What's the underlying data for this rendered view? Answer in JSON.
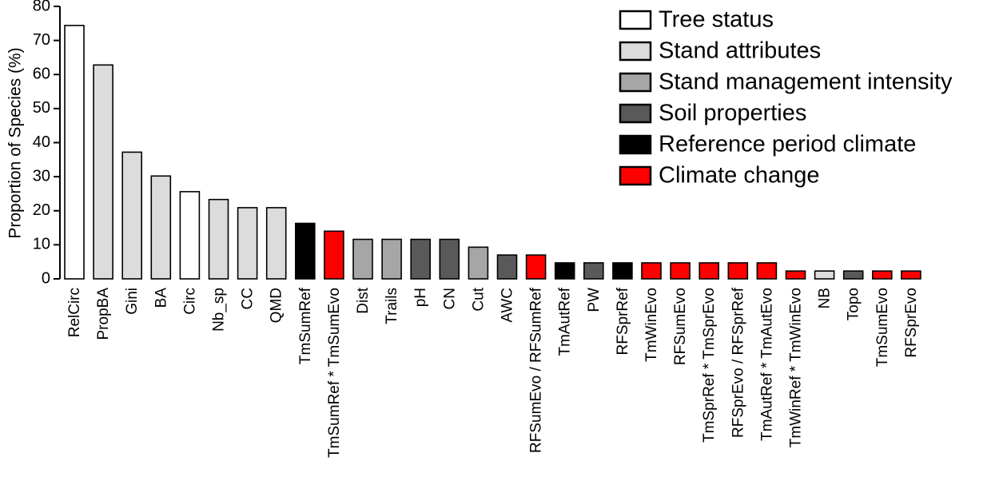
{
  "chart_data": {
    "type": "bar",
    "title": "",
    "xlabel": "",
    "ylabel": "Proportion of Species (%)",
    "ylim": [
      0,
      80
    ],
    "yticks": [
      0,
      10,
      20,
      30,
      40,
      50,
      60,
      70,
      80
    ],
    "grid": false,
    "legend_position": "top-right",
    "legend": [
      {
        "name": "Tree status",
        "color": "#ffffff"
      },
      {
        "name": "Stand attributes",
        "color": "#dcdcdc"
      },
      {
        "name": "Stand management intensity",
        "color": "#a6a6a6"
      },
      {
        "name": "Soil properties",
        "color": "#595959"
      },
      {
        "name": "Reference period climate",
        "color": "#000000"
      },
      {
        "name": "Climate change",
        "color": "#ff0000"
      }
    ],
    "bars": [
      {
        "label": "RelCirc",
        "value": 74.4,
        "group": 0
      },
      {
        "label": "PropBA",
        "value": 62.8,
        "group": 1
      },
      {
        "label": "Gini",
        "value": 37.2,
        "group": 1
      },
      {
        "label": "BA",
        "value": 30.2,
        "group": 1
      },
      {
        "label": "Circ",
        "value": 25.6,
        "group": 0
      },
      {
        "label": "Nb_sp",
        "value": 23.3,
        "group": 1
      },
      {
        "label": "CC",
        "value": 20.9,
        "group": 1
      },
      {
        "label": "QMD",
        "value": 20.9,
        "group": 1
      },
      {
        "label": "TmSumRef",
        "value": 16.3,
        "group": 4
      },
      {
        "label": "TmSumRef * TmSumEvo",
        "value": 14.0,
        "group": 5
      },
      {
        "label": "Dist",
        "value": 11.6,
        "group": 2
      },
      {
        "label": "Trails",
        "value": 11.6,
        "group": 2
      },
      {
        "label": "pH",
        "value": 11.6,
        "group": 3
      },
      {
        "label": "CN",
        "value": 11.6,
        "group": 3
      },
      {
        "label": "Cut",
        "value": 9.3,
        "group": 2
      },
      {
        "label": "AWC",
        "value": 7.0,
        "group": 3
      },
      {
        "label": "RFSumEvo / RFSumRef",
        "value": 7.0,
        "group": 5
      },
      {
        "label": "TmAutRef",
        "value": 4.7,
        "group": 4
      },
      {
        "label": "PW",
        "value": 4.7,
        "group": 3
      },
      {
        "label": "RFSprRef",
        "value": 4.7,
        "group": 4
      },
      {
        "label": "TmWinEvo",
        "value": 4.7,
        "group": 5
      },
      {
        "label": "RFSumEvo",
        "value": 4.7,
        "group": 5
      },
      {
        "label": "TmSprRef * TmSprEvo",
        "value": 4.7,
        "group": 5
      },
      {
        "label": "RFSprEvo / RFSprRef",
        "value": 4.7,
        "group": 5
      },
      {
        "label": "TmAutRef * TmAutEvo",
        "value": 4.7,
        "group": 5
      },
      {
        "label": "TmWinRef * TmWinEvo",
        "value": 2.3,
        "group": 5
      },
      {
        "label": "NB",
        "value": 2.3,
        "group": 1
      },
      {
        "label": "Topo",
        "value": 2.3,
        "group": 3
      },
      {
        "label": "TmSumEvo",
        "value": 2.3,
        "group": 5
      },
      {
        "label": "RFSprEvo",
        "value": 2.3,
        "group": 5
      }
    ]
  }
}
